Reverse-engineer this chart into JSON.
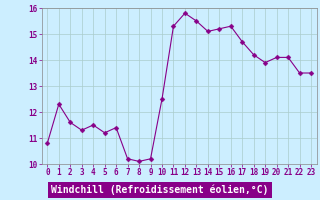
{
  "x": [
    0,
    1,
    2,
    3,
    4,
    5,
    6,
    7,
    8,
    9,
    10,
    11,
    12,
    13,
    14,
    15,
    16,
    17,
    18,
    19,
    20,
    21,
    22,
    23
  ],
  "y": [
    10.8,
    12.3,
    11.6,
    11.3,
    11.5,
    11.2,
    11.4,
    10.2,
    10.1,
    10.2,
    12.5,
    15.3,
    15.8,
    15.5,
    15.1,
    15.2,
    15.3,
    14.7,
    14.2,
    13.9,
    14.1,
    14.1,
    13.5,
    13.5
  ],
  "line_color": "#880088",
  "marker": "D",
  "marker_size": 2.5,
  "bg_color": "#cceeff",
  "grid_color": "#aacccc",
  "xlabel": "Windchill (Refroidissement éolien,°C)",
  "xlabel_bg": "#880088",
  "xlabel_color": "#ffffff",
  "ylim": [
    10,
    16
  ],
  "xlim": [
    -0.5,
    23.5
  ],
  "yticks": [
    10,
    11,
    12,
    13,
    14,
    15,
    16
  ],
  "xticks": [
    0,
    1,
    2,
    3,
    4,
    5,
    6,
    7,
    8,
    9,
    10,
    11,
    12,
    13,
    14,
    15,
    16,
    17,
    18,
    19,
    20,
    21,
    22,
    23
  ],
  "xtick_labels": [
    "0",
    "1",
    "2",
    "3",
    "4",
    "5",
    "6",
    "7",
    "8",
    "9",
    "10",
    "11",
    "12",
    "13",
    "14",
    "15",
    "16",
    "17",
    "18",
    "19",
    "20",
    "21",
    "22",
    "23"
  ],
  "tick_fontsize": 5.5,
  "xlabel_fontsize": 7.0,
  "spine_color": "#888888"
}
